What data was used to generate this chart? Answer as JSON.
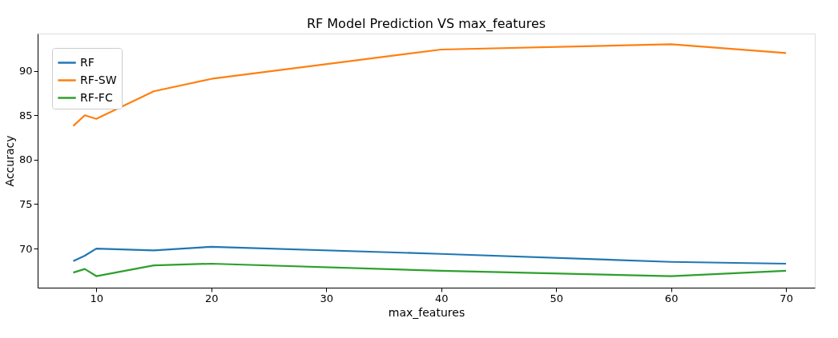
{
  "chart_data": {
    "type": "line",
    "title": "RF Model Prediction VS max_features",
    "xlabel": "max_features",
    "ylabel": "Accuracy",
    "x": [
      8,
      9,
      10,
      15,
      20,
      40,
      60,
      70
    ],
    "series": [
      {
        "name": "RF",
        "color": "#1f77b4",
        "values": [
          68.6,
          69.2,
          70.0,
          69.8,
          70.2,
          69.4,
          68.5,
          68.3
        ]
      },
      {
        "name": "RF-SW",
        "color": "#ff7f0e",
        "values": [
          83.8,
          85.0,
          84.6,
          87.7,
          89.1,
          92.4,
          93.0,
          92.0
        ]
      },
      {
        "name": "RF-FC",
        "color": "#2ca02c",
        "values": [
          67.3,
          67.7,
          66.9,
          68.1,
          68.3,
          67.5,
          66.9,
          67.5
        ]
      }
    ],
    "xlim": [
      4.9,
      72.5
    ],
    "xticks": [
      10,
      20,
      30,
      40,
      50,
      60,
      70
    ],
    "ylim": [
      65.6,
      94.2
    ],
    "yticks": [
      70,
      75,
      80,
      85,
      90
    ],
    "grid": false,
    "legend": "top left",
    "marker": "none",
    "line_style": "solid"
  }
}
